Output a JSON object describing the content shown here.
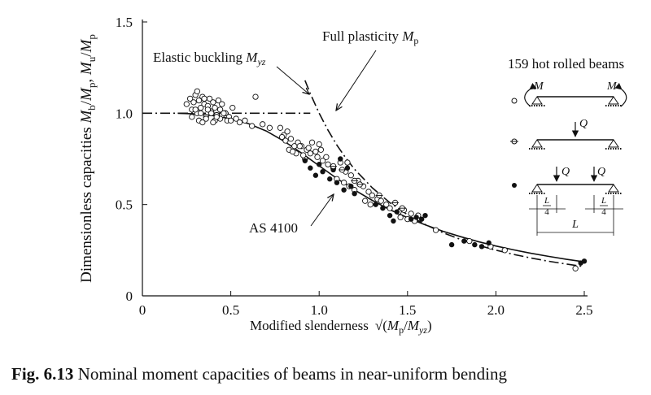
{
  "chart_data": {
    "type": "scatter",
    "ylabel_parts": [
      "Dimensionless capacities ",
      "M",
      "b",
      "/",
      "M",
      "p",
      ", ",
      "M",
      "u",
      "/",
      "M",
      "p"
    ],
    "xlabel_main": "Modified slenderness",
    "xlabel_formula_parts": [
      "√(",
      "M",
      "p",
      "/",
      "M",
      "yz",
      ")"
    ],
    "xlim": [
      0,
      2.5
    ],
    "ylim": [
      0,
      1.5
    ],
    "x_ticks": [
      "0",
      "0.5",
      "1.0",
      "1.5",
      "2.0",
      "2.5"
    ],
    "y_ticks": [
      "0",
      "0.5",
      "1.0",
      "1.5"
    ],
    "grid": false,
    "curves": [
      {
        "name": "Elastic buckling M_yz",
        "style": "dash-dot",
        "x": [
          0.92,
          0.95,
          1.0,
          1.05,
          1.1,
          1.15,
          1.2,
          1.3,
          1.4,
          1.5,
          1.6,
          1.7,
          1.8,
          1.9,
          2.0,
          2.1,
          2.2,
          2.3,
          2.4,
          2.5
        ],
        "y": [
          1.18,
          1.108,
          1.0,
          0.907,
          0.826,
          0.756,
          0.694,
          0.592,
          0.51,
          0.444,
          0.391,
          0.346,
          0.309,
          0.277,
          0.25,
          0.227,
          0.207,
          0.189,
          0.174,
          0.16
        ]
      },
      {
        "name": "Full plasticity M_p",
        "style": "dash-dot",
        "x": [
          0.0,
          0.95
        ],
        "y": [
          1.0,
          1.0
        ]
      },
      {
        "name": "AS 4100",
        "style": "solid",
        "x": [
          0.2,
          0.3,
          0.4,
          0.5,
          0.6,
          0.7,
          0.8,
          0.9,
          1.0,
          1.1,
          1.2,
          1.3,
          1.4,
          1.5,
          1.6,
          1.7,
          1.8,
          1.9,
          2.0,
          2.1,
          2.2,
          2.3,
          2.4,
          2.5
        ],
        "y": [
          1.0,
          0.996,
          0.987,
          0.97,
          0.943,
          0.903,
          0.848,
          0.782,
          0.712,
          0.643,
          0.58,
          0.523,
          0.472,
          0.428,
          0.389,
          0.354,
          0.324,
          0.297,
          0.273,
          0.252,
          0.233,
          0.216,
          0.2,
          0.186
        ]
      }
    ],
    "series": [
      {
        "marker": "open-circle",
        "x": [
          0.25,
          0.27,
          0.28,
          0.29,
          0.3,
          0.31,
          0.32,
          0.33,
          0.34,
          0.35,
          0.36,
          0.37,
          0.38,
          0.39,
          0.4,
          0.41,
          0.42,
          0.43,
          0.44,
          0.45,
          0.47,
          0.49,
          0.51,
          0.53,
          0.28,
          0.32,
          0.36,
          0.41,
          0.45,
          0.31,
          0.35,
          0.39,
          0.44,
          0.48,
          0.3,
          0.33,
          0.37,
          0.42,
          0.46,
          0.34,
          0.4,
          0.5,
          0.55,
          0.58,
          0.62,
          0.64,
          0.68,
          0.72,
          0.8,
          0.82,
          0.78,
          0.84,
          0.86,
          0.88,
          0.79,
          0.83,
          0.87,
          0.9,
          0.93,
          0.96,
          0.98,
          1.0,
          0.92,
          0.95,
          0.99,
          1.02,
          1.05,
          1.08,
          1.12,
          1.15,
          1.18,
          1.1,
          1.14,
          1.17,
          1.2,
          1.22,
          1.25,
          1.28,
          1.3,
          1.33,
          1.26,
          1.29,
          1.35,
          1.38,
          1.4,
          1.45,
          1.48,
          1.52,
          1.56,
          1.46,
          1.5,
          1.54,
          1.66,
          1.85,
          1.97,
          2.05,
          2.45,
          0.91,
          0.94,
          1.01,
          1.04,
          1.16,
          0.81,
          0.85,
          0.89
        ],
        "y": [
          1.05,
          1.08,
          1.02,
          1.06,
          1.1,
          1.0,
          1.07,
          1.03,
          1.09,
          1.05,
          0.98,
          1.04,
          1.08,
          1.01,
          1.06,
          1.03,
          0.99,
          1.07,
          1.02,
          1.05,
          1.0,
          0.98,
          1.03,
          0.97,
          0.98,
          0.96,
          0.97,
          0.96,
          0.99,
          1.12,
          1.08,
          1.0,
          0.97,
          0.96,
          1.02,
          1.0,
          1.02,
          0.98,
          1.0,
          0.95,
          0.95,
          0.96,
          0.95,
          0.96,
          0.93,
          1.09,
          0.94,
          0.92,
          0.88,
          0.9,
          0.92,
          0.86,
          0.82,
          0.84,
          0.87,
          0.8,
          0.78,
          0.82,
          0.8,
          0.84,
          0.79,
          0.83,
          0.75,
          0.78,
          0.76,
          0.74,
          0.72,
          0.7,
          0.73,
          0.68,
          0.66,
          0.64,
          0.62,
          0.6,
          0.58,
          0.63,
          0.6,
          0.57,
          0.55,
          0.53,
          0.52,
          0.5,
          0.52,
          0.5,
          0.48,
          0.46,
          0.47,
          0.45,
          0.44,
          0.43,
          0.42,
          0.41,
          0.36,
          0.3,
          0.27,
          0.25,
          0.15,
          0.77,
          0.81,
          0.8,
          0.76,
          0.73,
          0.85,
          0.79,
          0.82
        ]
      },
      {
        "marker": "filled-circle",
        "x": [
          0.92,
          0.95,
          0.98,
          1.0,
          1.02,
          1.06,
          1.1,
          1.12,
          1.14,
          1.18,
          1.2,
          1.32,
          1.36,
          1.4,
          1.44,
          1.55,
          1.58,
          1.6,
          1.75,
          1.82,
          1.88,
          1.92,
          1.96,
          2.48,
          2.5,
          1.08,
          1.16,
          1.42,
          1.52
        ],
        "y": [
          0.74,
          0.7,
          0.66,
          0.72,
          0.68,
          0.64,
          0.62,
          0.75,
          0.58,
          0.6,
          0.56,
          0.5,
          0.48,
          0.44,
          0.46,
          0.43,
          0.42,
          0.44,
          0.28,
          0.3,
          0.28,
          0.27,
          0.29,
          0.18,
          0.19,
          0.69,
          0.7,
          0.41,
          0.42
        ]
      },
      {
        "marker": "circle-with-bar",
        "x": [
          1.08,
          1.13,
          1.2,
          1.23,
          1.34,
          1.43,
          1.47
        ],
        "y": [
          0.71,
          0.69,
          0.63,
          0.61,
          0.55,
          0.51,
          0.48
        ]
      }
    ],
    "annotations": {
      "elastic": {
        "label_parts": [
          "Elastic buckling ",
          "M",
          "yz"
        ]
      },
      "plastic": {
        "label_parts": [
          "Full plasticity ",
          "M",
          "p"
        ]
      },
      "as4100": {
        "label": "AS 4100"
      }
    },
    "inset": {
      "title": "159 hot rolled beams",
      "moment_left": "M",
      "moment_right": "M",
      "load_1": "Q",
      "load_2a": "Q",
      "load_2b": "Q",
      "quarter_num": "L",
      "quarter_den": "4",
      "span": "L"
    }
  },
  "caption": {
    "label": "Fig. 6.13",
    "text": " Nominal moment capacities of beams in near-uniform bending"
  }
}
